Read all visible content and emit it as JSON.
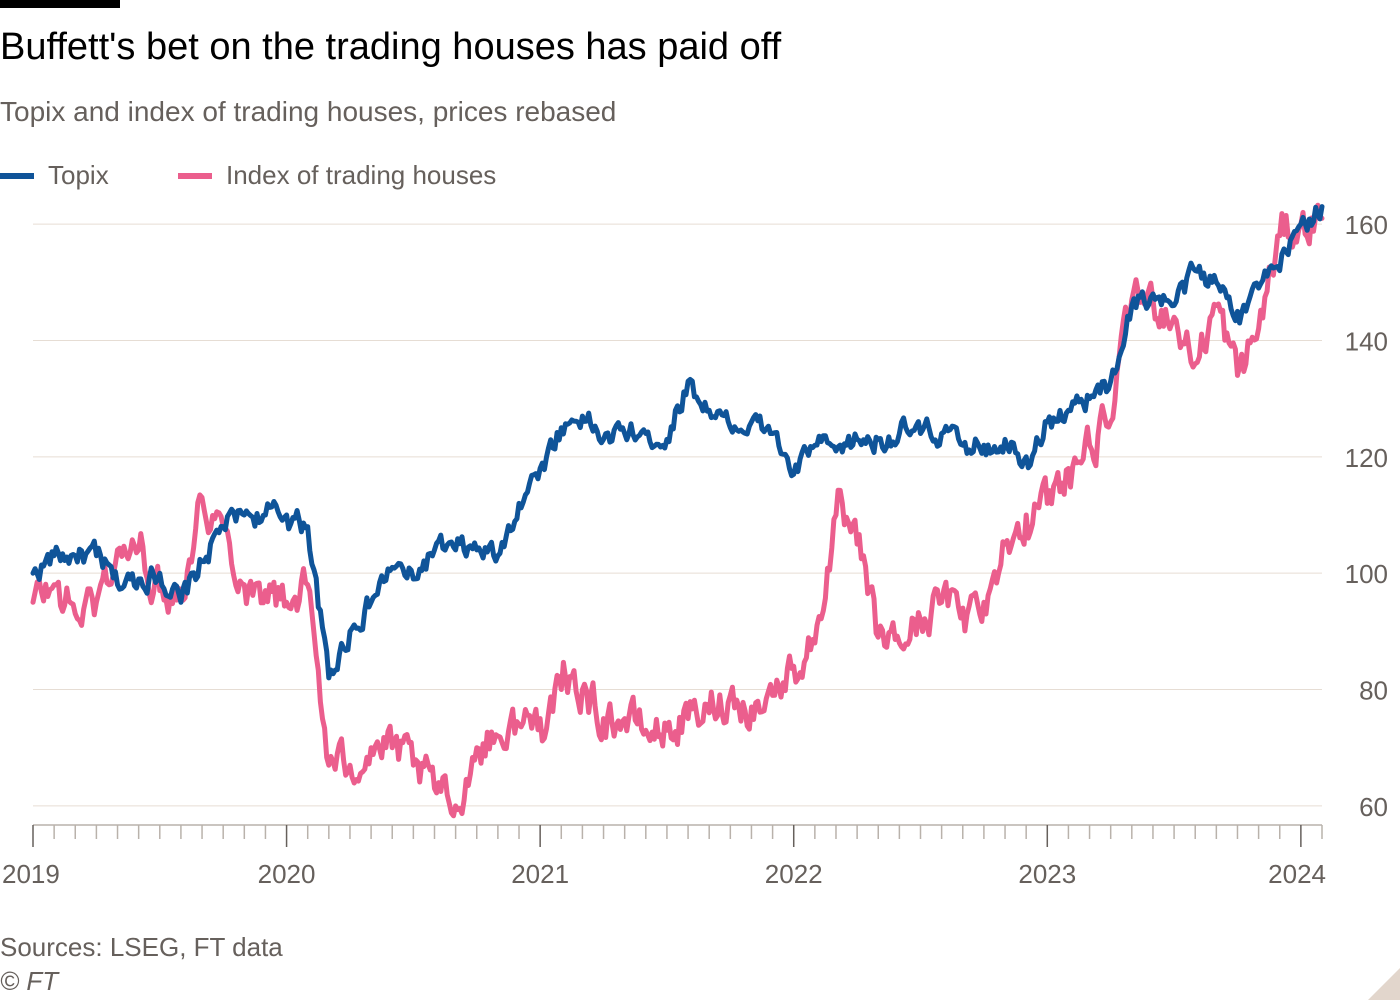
{
  "colors": {
    "topix": "#0f5499",
    "trading": "#eb5e8d",
    "grid": "#e6ddd4",
    "axis": "#66605c"
  },
  "title": "Buffett's bet on the trading houses has paid off",
  "subtitle": "Topix and index of trading houses, prices rebased",
  "source": "Sources: LSEG, FT data",
  "credit": "© FT",
  "chart_data": {
    "type": "line",
    "title": "Buffett's bet on the trading houses has paid off",
    "subtitle": "Topix and index of trading houses, prices rebased",
    "xlabel": "",
    "ylabel": "",
    "xlim": [
      "2019-01",
      "2024-02"
    ],
    "ylim": [
      55,
      165
    ],
    "y_ticks": [
      60,
      80,
      100,
      120,
      140,
      160
    ],
    "x_tick_labels": [
      "2019",
      "2020",
      "2021",
      "2022",
      "2023",
      "2024"
    ],
    "grid": true,
    "y_axis_side": "right",
    "legend_placement": "top-left",
    "x": [
      "2019-01",
      "2019-02",
      "2019-03",
      "2019-04",
      "2019-05",
      "2019-06",
      "2019-07",
      "2019-08",
      "2019-09",
      "2019-10",
      "2019-11",
      "2019-12",
      "2020-01",
      "2020-02",
      "2020-03",
      "2020-04",
      "2020-05",
      "2020-06",
      "2020-07",
      "2020-08",
      "2020-09",
      "2020-10",
      "2020-11",
      "2020-12",
      "2021-01",
      "2021-02",
      "2021-03",
      "2021-04",
      "2021-05",
      "2021-06",
      "2021-07",
      "2021-08",
      "2021-09",
      "2021-10",
      "2021-11",
      "2021-12",
      "2022-01",
      "2022-02",
      "2022-03",
      "2022-04",
      "2022-05",
      "2022-06",
      "2022-07",
      "2022-08",
      "2022-09",
      "2022-10",
      "2022-11",
      "2022-12",
      "2023-01",
      "2023-02",
      "2023-03",
      "2023-04",
      "2023-05",
      "2023-06",
      "2023-07",
      "2023-08",
      "2023-09",
      "2023-10",
      "2023-11",
      "2023-12",
      "2024-01",
      "2024-02"
    ],
    "series": [
      {
        "name": "Topix",
        "values": [
          100,
          103,
          103,
          103,
          98,
          99,
          100,
          95,
          102,
          108,
          110,
          110,
          110,
          108,
          82,
          90,
          95,
          101,
          99,
          104,
          104,
          104,
          103,
          112,
          118,
          125,
          127,
          123,
          124,
          124,
          123,
          133,
          128,
          125,
          126,
          124,
          117,
          122,
          121,
          123,
          123,
          124,
          124,
          124,
          122,
          122,
          123,
          120,
          126,
          128,
          130,
          133,
          146,
          148,
          146,
          152,
          150,
          145,
          149,
          152,
          160,
          163
        ]
      },
      {
        "name": "Index of trading houses",
        "values": [
          95,
          98,
          93,
          95,
          104,
          104,
          97,
          97,
          113,
          108,
          98,
          97,
          95,
          98,
          67,
          67,
          70,
          70,
          67,
          63,
          60,
          70,
          72,
          74,
          75,
          80,
          80,
          75,
          75,
          73,
          73,
          75,
          76,
          79,
          77,
          79,
          84,
          88,
          110,
          105,
          89,
          88,
          92,
          95,
          94,
          95,
          105,
          110,
          112,
          118,
          122,
          126,
          147,
          147,
          144,
          136,
          146,
          134,
          142,
          158,
          160,
          161
        ]
      }
    ]
  }
}
